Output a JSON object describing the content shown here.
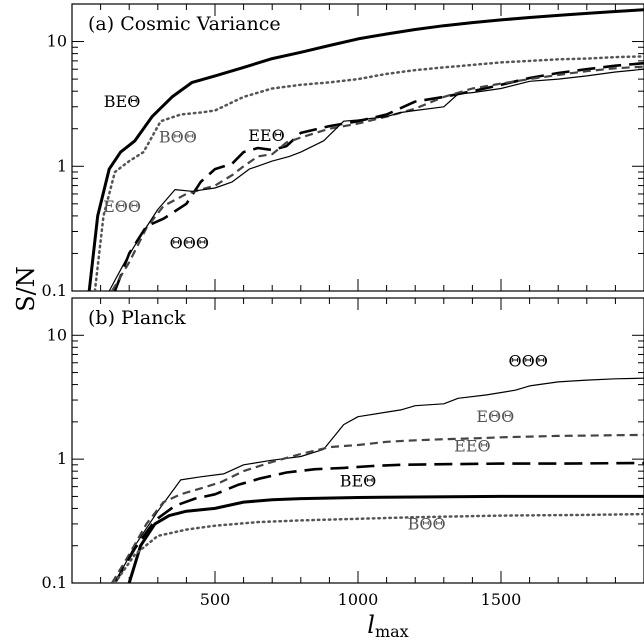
{
  "ylabel": "S/N",
  "xlabel_main": "l",
  "xlabel_sub": "max",
  "chart_data": [
    {
      "type": "line",
      "title": "(a) Cosmic Variance",
      "x_scale": "linear",
      "y_scale": "log",
      "xlim": [
        0,
        2000
      ],
      "ylim": [
        0.1,
        20
      ],
      "y_ticks": [
        0.1,
        1,
        10
      ],
      "y_tick_labels": [
        "0.1",
        "1",
        "10"
      ],
      "x_ticks": [
        500,
        1000,
        1500
      ],
      "x_tick_labels": [
        "",
        "",
        ""
      ],
      "series": [
        {
          "name": "BEΘ",
          "style": "solid-thick",
          "color": "#000000",
          "points": [
            [
              60,
              0.1
            ],
            [
              90,
              0.4
            ],
            [
              130,
              0.95
            ],
            [
              170,
              1.3
            ],
            [
              220,
              1.6
            ],
            [
              280,
              2.5
            ],
            [
              350,
              3.6
            ],
            [
              420,
              4.7
            ],
            [
              500,
              5.3
            ],
            [
              600,
              6.2
            ],
            [
              700,
              7.3
            ],
            [
              800,
              8.2
            ],
            [
              900,
              9.3
            ],
            [
              1000,
              10.5
            ],
            [
              1100,
              11.5
            ],
            [
              1200,
              12.5
            ],
            [
              1300,
              13.4
            ],
            [
              1400,
              14.2
            ],
            [
              1500,
              14.9
            ],
            [
              1600,
              15.6
            ],
            [
              1700,
              16.2
            ],
            [
              1800,
              16.8
            ],
            [
              1900,
              17.4
            ],
            [
              2000,
              18.0
            ]
          ]
        },
        {
          "name": "BΘΘ",
          "style": "dotted",
          "color": "#555555",
          "points": [
            [
              80,
              0.1
            ],
            [
              110,
              0.4
            ],
            [
              150,
              0.9
            ],
            [
              200,
              1.1
            ],
            [
              250,
              1.3
            ],
            [
              310,
              2.3
            ],
            [
              380,
              2.6
            ],
            [
              450,
              2.7
            ],
            [
              500,
              2.8
            ],
            [
              600,
              3.6
            ],
            [
              700,
              4.2
            ],
            [
              800,
              4.5
            ],
            [
              900,
              4.7
            ],
            [
              1000,
              5.0
            ],
            [
              1100,
              5.5
            ],
            [
              1200,
              5.9
            ],
            [
              1300,
              6.2
            ],
            [
              1400,
              6.5
            ],
            [
              1500,
              6.8
            ],
            [
              1600,
              7.0
            ],
            [
              1700,
              7.2
            ],
            [
              1800,
              7.3
            ],
            [
              1900,
              7.5
            ],
            [
              2000,
              7.6
            ]
          ]
        },
        {
          "name": "EEΘ",
          "style": "long-dash",
          "color": "#000000",
          "points": [
            [
              150,
              0.1
            ],
            [
              200,
              0.2
            ],
            [
              260,
              0.33
            ],
            [
              320,
              0.38
            ],
            [
              400,
              0.5
            ],
            [
              450,
              0.75
            ],
            [
              500,
              0.95
            ],
            [
              560,
              1.05
            ],
            [
              600,
              1.3
            ],
            [
              650,
              1.4
            ],
            [
              700,
              1.35
            ],
            [
              750,
              1.45
            ],
            [
              800,
              1.85
            ],
            [
              900,
              2.1
            ],
            [
              1000,
              2.3
            ],
            [
              1100,
              2.6
            ],
            [
              1200,
              3.3
            ],
            [
              1300,
              3.6
            ],
            [
              1400,
              4.0
            ],
            [
              1500,
              4.5
            ],
            [
              1600,
              5.1
            ],
            [
              1700,
              5.6
            ],
            [
              1800,
              6.0
            ],
            [
              1900,
              6.4
            ],
            [
              2000,
              6.7
            ]
          ]
        },
        {
          "name": "EΘΘ",
          "style": "short-dash",
          "color": "#444444",
          "points": [
            [
              140,
              0.1
            ],
            [
              200,
              0.17
            ],
            [
              260,
              0.32
            ],
            [
              320,
              0.48
            ],
            [
              400,
              0.6
            ],
            [
              450,
              0.65
            ],
            [
              500,
              0.7
            ],
            [
              560,
              0.85
            ],
            [
              600,
              1.0
            ],
            [
              650,
              1.2
            ],
            [
              700,
              1.25
            ],
            [
              750,
              1.55
            ],
            [
              800,
              1.7
            ],
            [
              900,
              2.0
            ],
            [
              1000,
              2.2
            ],
            [
              1100,
              2.5
            ],
            [
              1200,
              2.9
            ],
            [
              1300,
              3.6
            ],
            [
              1400,
              4.2
            ],
            [
              1500,
              4.6
            ],
            [
              1600,
              5.0
            ],
            [
              1700,
              5.4
            ],
            [
              1800,
              5.8
            ],
            [
              1900,
              6.1
            ],
            [
              2000,
              6.3
            ]
          ]
        },
        {
          "name": "ΘΘΘ",
          "style": "solid-thin",
          "color": "#000000",
          "points": [
            [
              130,
              0.1
            ],
            [
              190,
              0.18
            ],
            [
              250,
              0.3
            ],
            [
              300,
              0.45
            ],
            [
              360,
              0.65
            ],
            [
              420,
              0.63
            ],
            [
              500,
              0.67
            ],
            [
              560,
              0.75
            ],
            [
              620,
              0.95
            ],
            [
              700,
              1.1
            ],
            [
              760,
              1.2
            ],
            [
              800,
              1.3
            ],
            [
              880,
              1.6
            ],
            [
              950,
              2.3
            ],
            [
              1000,
              2.35
            ],
            [
              1100,
              2.5
            ],
            [
              1150,
              2.7
            ],
            [
              1200,
              2.8
            ],
            [
              1300,
              3.0
            ],
            [
              1350,
              3.8
            ],
            [
              1400,
              3.9
            ],
            [
              1500,
              4.2
            ],
            [
              1600,
              4.8
            ],
            [
              1700,
              5.0
            ],
            [
              1800,
              5.3
            ],
            [
              1900,
              5.7
            ],
            [
              2000,
              6.0
            ]
          ]
        }
      ],
      "labels": [
        {
          "text": "BEΘ",
          "x": 175,
          "y": 3.0,
          "color": "#000000"
        },
        {
          "text": "BΘΘ",
          "x": 370,
          "y": 1.55,
          "color": "#555555"
        },
        {
          "text": "EEΘ",
          "x": 680,
          "y": 1.6,
          "color": "#000000"
        },
        {
          "text": "EΘΘ",
          "x": 175,
          "y": 0.43,
          "color": "#555555"
        },
        {
          "text": "ΘΘΘ",
          "x": 410,
          "y": 0.22,
          "color": "#000000"
        }
      ]
    },
    {
      "type": "line",
      "title": "(b) Planck",
      "x_scale": "linear",
      "y_scale": "log",
      "xlim": [
        0,
        2000
      ],
      "ylim": [
        0.1,
        20
      ],
      "y_ticks": [
        0.1,
        1,
        10
      ],
      "y_tick_labels": [
        "0.1",
        "1",
        "10"
      ],
      "x_ticks": [
        500,
        1000,
        1500
      ],
      "x_tick_labels": [
        "500",
        "1000",
        "1500"
      ],
      "series": [
        {
          "name": "ΘΘΘ",
          "style": "solid-thin",
          "color": "#000000",
          "points": [
            [
              150,
              0.1
            ],
            [
              220,
              0.2
            ],
            [
              300,
              0.38
            ],
            [
              380,
              0.68
            ],
            [
              450,
              0.72
            ],
            [
              530,
              0.76
            ],
            [
              600,
              0.9
            ],
            [
              700,
              0.98
            ],
            [
              800,
              1.05
            ],
            [
              880,
              1.2
            ],
            [
              950,
              1.9
            ],
            [
              1000,
              2.2
            ],
            [
              1100,
              2.4
            ],
            [
              1150,
              2.5
            ],
            [
              1200,
              2.7
            ],
            [
              1300,
              2.8
            ],
            [
              1350,
              3.1
            ],
            [
              1450,
              3.3
            ],
            [
              1550,
              3.6
            ],
            [
              1600,
              3.9
            ],
            [
              1700,
              4.2
            ],
            [
              1800,
              4.35
            ],
            [
              1900,
              4.45
            ],
            [
              2000,
              4.5
            ]
          ]
        },
        {
          "name": "EΘΘ",
          "style": "short-dash",
          "color": "#444444",
          "points": [
            [
              140,
              0.1
            ],
            [
              200,
              0.17
            ],
            [
              260,
              0.3
            ],
            [
              320,
              0.45
            ],
            [
              380,
              0.52
            ],
            [
              450,
              0.58
            ],
            [
              520,
              0.65
            ],
            [
              600,
              0.8
            ],
            [
              700,
              0.95
            ],
            [
              800,
              1.1
            ],
            [
              900,
              1.25
            ],
            [
              1000,
              1.3
            ],
            [
              1100,
              1.38
            ],
            [
              1200,
              1.42
            ],
            [
              1300,
              1.45
            ],
            [
              1400,
              1.47
            ],
            [
              1500,
              1.5
            ],
            [
              1600,
              1.52
            ],
            [
              1700,
              1.54
            ],
            [
              1800,
              1.55
            ],
            [
              1900,
              1.56
            ],
            [
              2000,
              1.57
            ]
          ]
        },
        {
          "name": "EEΘ",
          "style": "long-dash",
          "color": "#000000",
          "points": [
            [
              150,
              0.1
            ],
            [
              220,
              0.19
            ],
            [
              290,
              0.32
            ],
            [
              360,
              0.42
            ],
            [
              430,
              0.48
            ],
            [
              500,
              0.52
            ],
            [
              580,
              0.62
            ],
            [
              660,
              0.7
            ],
            [
              750,
              0.78
            ],
            [
              850,
              0.83
            ],
            [
              950,
              0.85
            ],
            [
              1050,
              0.88
            ],
            [
              1150,
              0.9
            ],
            [
              1300,
              0.91
            ],
            [
              1500,
              0.92
            ],
            [
              1700,
              0.92
            ],
            [
              2000,
              0.93
            ]
          ]
        },
        {
          "name": "BEΘ",
          "style": "solid-thick",
          "color": "#000000",
          "points": [
            [
              200,
              0.1
            ],
            [
              240,
              0.2
            ],
            [
              290,
              0.3
            ],
            [
              340,
              0.35
            ],
            [
              400,
              0.38
            ],
            [
              500,
              0.4
            ],
            [
              600,
              0.45
            ],
            [
              700,
              0.47
            ],
            [
              800,
              0.48
            ],
            [
              1000,
              0.49
            ],
            [
              1200,
              0.495
            ],
            [
              1500,
              0.5
            ],
            [
              2000,
              0.5
            ]
          ]
        },
        {
          "name": "BΘΘ",
          "style": "dotted",
          "color": "#555555",
          "points": [
            [
              150,
              0.1
            ],
            [
              220,
              0.17
            ],
            [
              300,
              0.24
            ],
            [
              400,
              0.27
            ],
            [
              500,
              0.29
            ],
            [
              650,
              0.31
            ],
            [
              800,
              0.32
            ],
            [
              1000,
              0.33
            ],
            [
              1200,
              0.34
            ],
            [
              1500,
              0.35
            ],
            [
              1800,
              0.355
            ],
            [
              2000,
              0.36
            ]
          ]
        }
      ],
      "labels": [
        {
          "text": "ΘΘΘ",
          "x": 1595,
          "y": 5.6,
          "color": "#000000"
        },
        {
          "text": "EΘΘ",
          "x": 1480,
          "y": 2.0,
          "color": "#555555"
        },
        {
          "text": "EEΘ",
          "x": 1400,
          "y": 1.15,
          "color": "#555555"
        },
        {
          "text": "BEΘ",
          "x": 1000,
          "y": 0.6,
          "color": "#000000"
        },
        {
          "text": "BΘΘ",
          "x": 1240,
          "y": 0.27,
          "color": "#555555"
        }
      ]
    }
  ]
}
